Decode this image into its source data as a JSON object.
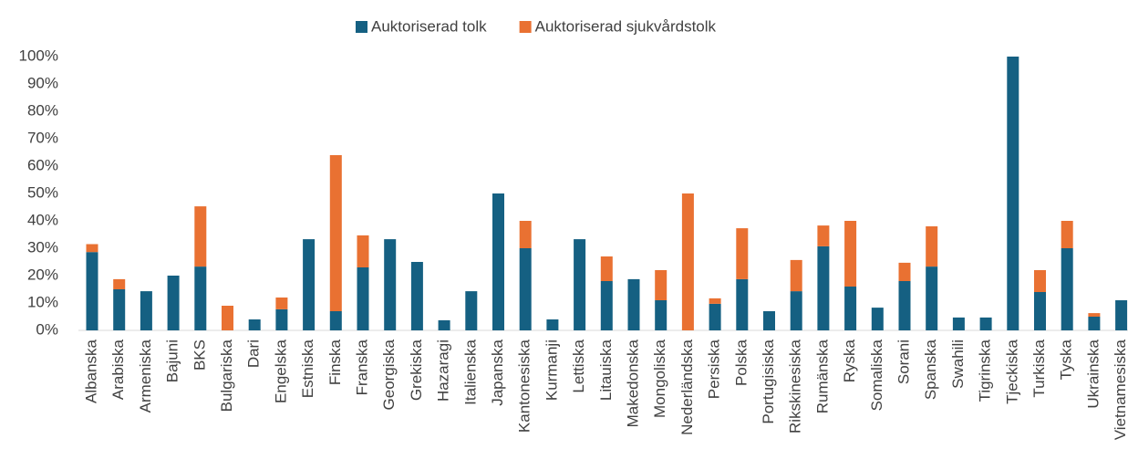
{
  "chart_data": {
    "type": "stacked_bar",
    "categories": [
      "Albanska",
      "Arabiska",
      "Armeniska",
      "Bajuni",
      "BKS",
      "Bulgariska",
      "Dari",
      "Engelska",
      "Estniska",
      "Finska",
      "Franska",
      "Georgiska",
      "Grekiska",
      "Hazaragi",
      "Italienska",
      "Japanska",
      "Kantonesiska",
      "Kurmanji",
      "Lettiska",
      "Litauiska",
      "Makedonska",
      "Mongoliska",
      "Nederländska",
      "Persiska",
      "Polska",
      "Portugisiska",
      "Rikskinesiska",
      "Rumänska",
      "Ryska",
      "Somaliska",
      "Sorani",
      "Spanska",
      "Swahili",
      "Tigrinska",
      "Tjeckiska",
      "Turkiska",
      "Tyska",
      "Ukrainska",
      "Vietnamesiska"
    ],
    "series": [
      {
        "name": "Auktoriserad tolk",
        "color": "#156082",
        "values": [
          28.6,
          15,
          14.3,
          20,
          23.3,
          0,
          4,
          7.7,
          33.3,
          7,
          23,
          33.3,
          25,
          3.7,
          14.3,
          50,
          30,
          4,
          33.3,
          18,
          18.7,
          11,
          0,
          9.7,
          18.7,
          7,
          14.3,
          30.7,
          16,
          8.3,
          18,
          23.3,
          4.7,
          4.7,
          100,
          14,
          30,
          5,
          11
        ]
      },
      {
        "name": "Auktoriserad sjukvårdstolk",
        "color": "#e97132",
        "values": [
          2.9,
          3.7,
          0,
          0,
          22,
          9,
          0,
          4.3,
          0,
          57,
          11.7,
          0,
          0,
          0,
          0,
          0,
          10,
          0,
          0,
          9,
          0,
          11,
          50,
          2,
          18.6,
          0,
          11.4,
          7.6,
          24,
          0,
          6.7,
          14.7,
          0,
          0,
          0,
          8,
          10,
          1.3,
          0
        ]
      }
    ],
    "ylim": [
      0,
      100
    ],
    "yticks": [
      {
        "value": 0,
        "label": "0%"
      },
      {
        "value": 10,
        "label": "10%"
      },
      {
        "value": 20,
        "label": "20%"
      },
      {
        "value": 30,
        "label": "30%"
      },
      {
        "value": 40,
        "label": "40%"
      },
      {
        "value": 50,
        "label": "50%"
      },
      {
        "value": 60,
        "label": "60%"
      },
      {
        "value": 70,
        "label": "70%"
      },
      {
        "value": 80,
        "label": "80%"
      },
      {
        "value": 90,
        "label": "90%"
      },
      {
        "value": 100,
        "label": "100%"
      }
    ],
    "legend": "top"
  }
}
